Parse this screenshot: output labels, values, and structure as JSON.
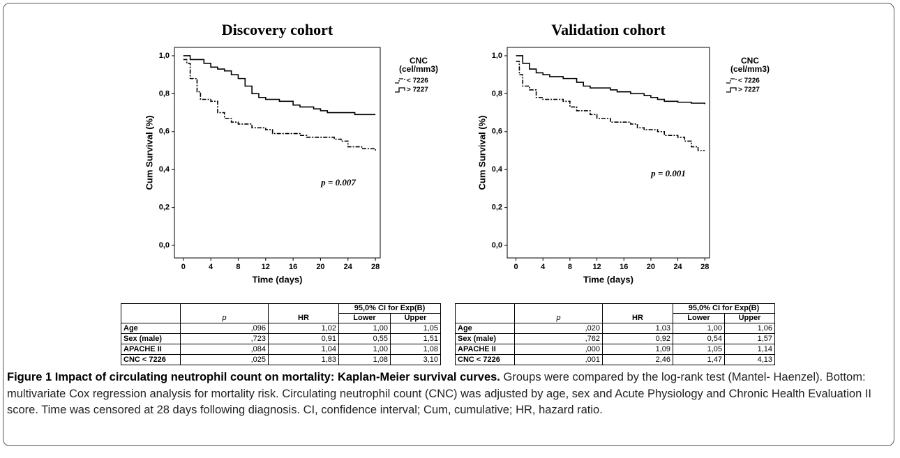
{
  "chart_data": [
    {
      "type": "line",
      "step": true,
      "title": "Discovery cohort",
      "xlabel": "Time (days)",
      "ylabel": "Cum Survival (%)",
      "xlim": [
        -1.3,
        28.7
      ],
      "ylim": [
        -0.066,
        1.044
      ],
      "xticks": [
        0,
        4,
        8,
        12,
        16,
        20,
        24,
        28
      ],
      "yticks": [
        {
          "value": 0,
          "label": "0,0"
        },
        {
          "value": 0.2,
          "label": "0,2"
        },
        {
          "value": 0.4,
          "label": "0,4"
        },
        {
          "value": 0.6,
          "label": "0,6"
        },
        {
          "value": 0.8,
          "label": "0,8"
        },
        {
          "value": 1,
          "label": "1,0"
        }
      ],
      "legend_title": [
        "CNC",
        "(cel/mm3)"
      ],
      "annotation": "p = 0.007",
      "series": [
        {
          "name": "< 7226",
          "color": "#000000",
          "dash": "6,2,2,2",
          "x": [
            0,
            0.5,
            1,
            2,
            2.5,
            4,
            5,
            6,
            7,
            8,
            10,
            12,
            13,
            17,
            18,
            22,
            23,
            24,
            26,
            28
          ],
          "values": [
            0.98,
            0.96,
            0.88,
            0.81,
            0.77,
            0.76,
            0.7,
            0.67,
            0.65,
            0.64,
            0.62,
            0.61,
            0.59,
            0.58,
            0.57,
            0.56,
            0.55,
            0.52,
            0.51,
            0.5
          ]
        },
        {
          "name": "> 7227",
          "color": "#000000",
          "dash": "none",
          "x": [
            0,
            1,
            3,
            4,
            5,
            6,
            7,
            8,
            9,
            10,
            11,
            12,
            14,
            16,
            17,
            19,
            20,
            21,
            25,
            28
          ],
          "values": [
            1,
            0.98,
            0.96,
            0.94,
            0.93,
            0.92,
            0.9,
            0.88,
            0.84,
            0.8,
            0.78,
            0.77,
            0.76,
            0.74,
            0.73,
            0.72,
            0.71,
            0.7,
            0.69,
            0.69
          ]
        }
      ]
    },
    {
      "type": "line",
      "step": true,
      "title": "Validation cohort",
      "xlabel": "Time (days)",
      "ylabel": "Cum Survival (%)",
      "xlim": [
        -1.3,
        28.7
      ],
      "ylim": [
        -0.066,
        1.044
      ],
      "xticks": [
        0,
        4,
        8,
        12,
        16,
        20,
        24,
        28
      ],
      "yticks": [
        {
          "value": 0,
          "label": "0,0"
        },
        {
          "value": 0.2,
          "label": "0,2"
        },
        {
          "value": 0.4,
          "label": "0,4"
        },
        {
          "value": 0.6,
          "label": "0,6"
        },
        {
          "value": 0.8,
          "label": "0,8"
        },
        {
          "value": 1,
          "label": "1,0"
        }
      ],
      "legend_title": [
        "CNC",
        "(cel/mm3)"
      ],
      "annotation": "p = 0.001",
      "series": [
        {
          "name": "< 7226",
          "color": "#000000",
          "dash": "6,2,2,2",
          "x": [
            0,
            0.5,
            1,
            2,
            3,
            4,
            7,
            8,
            9,
            11,
            12,
            14,
            17,
            18,
            19,
            21,
            22,
            24,
            25,
            26,
            27,
            28
          ],
          "values": [
            0.97,
            0.9,
            0.84,
            0.82,
            0.78,
            0.77,
            0.76,
            0.73,
            0.71,
            0.69,
            0.67,
            0.65,
            0.64,
            0.62,
            0.61,
            0.6,
            0.58,
            0.57,
            0.55,
            0.52,
            0.5,
            0.5
          ]
        },
        {
          "name": "> 7227",
          "color": "#000000",
          "dash": "none",
          "x": [
            0,
            1,
            2,
            3,
            4,
            5,
            7,
            9,
            10,
            11,
            14,
            15,
            17,
            19,
            20,
            21,
            22,
            24,
            26,
            28
          ],
          "values": [
            1,
            0.96,
            0.93,
            0.91,
            0.9,
            0.89,
            0.88,
            0.86,
            0.84,
            0.83,
            0.82,
            0.81,
            0.8,
            0.79,
            0.78,
            0.77,
            0.76,
            0.755,
            0.75,
            0.745
          ]
        }
      ]
    }
  ],
  "tables": [
    {
      "header_group": "95,0% CI for Exp(B)",
      "columns": [
        "p",
        "HR",
        "Lower",
        "Upper"
      ],
      "rows": [
        [
          "Age",
          ",096",
          "1,02",
          "1,00",
          "1,05"
        ],
        [
          "Sex (male)",
          ",723",
          "0,91",
          "0,55",
          "1,51"
        ],
        [
          "APACHE II",
          ",084",
          "1,04",
          "1,00",
          "1,08"
        ],
        [
          "CNC < 7226",
          ",025",
          "1,83",
          "1,08",
          "3,10"
        ]
      ]
    },
    {
      "header_group": "95,0% CI for Exp(B)",
      "columns": [
        "p",
        "HR",
        "Lower",
        "Upper"
      ],
      "rows": [
        [
          "Age",
          ",020",
          "1,03",
          "1,00",
          "1,06"
        ],
        [
          "Sex (male)",
          ",762",
          "0,92",
          "0,54",
          "1,57"
        ],
        [
          "APACHE II",
          ",000",
          "1,09",
          "1,05",
          "1,14"
        ],
        [
          "CNC < 7226",
          ",001",
          "2,46",
          "1,47",
          "4,13"
        ]
      ]
    }
  ],
  "caption": {
    "label": "Figure 1 Impact of circulating neutrophil count on mortality: Kaplan-Meier survival curves.",
    "text": "Groups were compared by the log-rank test (Mantel- Haenzel). Bottom: multivariate Cox regression analysis for mortality risk. Circulating neutrophil count (CNC) was adjusted by age, sex and Acute Physiology and Chronic Health Evaluation II score. Time was censored at 28 days following diagnosis. CI, confidence interval; Cum, cumulative; HR, hazard ratio."
  }
}
